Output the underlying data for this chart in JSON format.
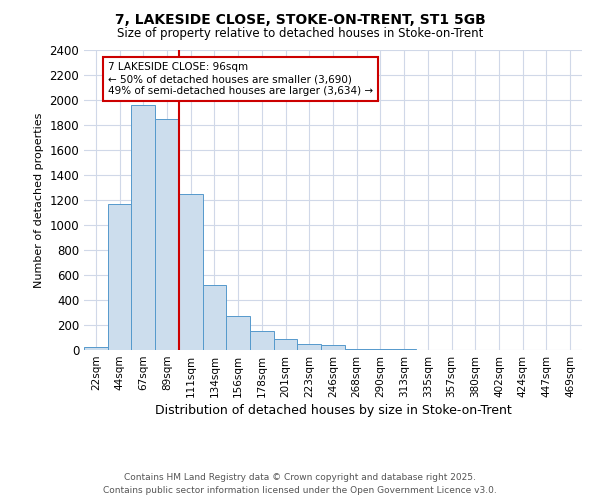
{
  "title1": "7, LAKESIDE CLOSE, STOKE-ON-TRENT, ST1 5GB",
  "title2": "Size of property relative to detached houses in Stoke-on-Trent",
  "xlabel": "Distribution of detached houses by size in Stoke-on-Trent",
  "ylabel": "Number of detached properties",
  "categories": [
    "22sqm",
    "44sqm",
    "67sqm",
    "89sqm",
    "111sqm",
    "134sqm",
    "156sqm",
    "178sqm",
    "201sqm",
    "223sqm",
    "246sqm",
    "268sqm",
    "290sqm",
    "313sqm",
    "335sqm",
    "357sqm",
    "380sqm",
    "402sqm",
    "424sqm",
    "447sqm",
    "469sqm"
  ],
  "values": [
    28,
    1170,
    1960,
    1850,
    1245,
    520,
    275,
    155,
    85,
    48,
    38,
    5,
    10,
    5,
    3,
    2,
    1,
    1,
    0,
    1,
    0
  ],
  "bar_color": "#ccdded",
  "bar_edge_color": "#5599cc",
  "vline_color": "#cc0000",
  "vline_x": 3.5,
  "annotation_title": "7 LAKESIDE CLOSE: 96sqm",
  "annotation_line1": "← 50% of detached houses are smaller (3,690)",
  "annotation_line2": "49% of semi-detached houses are larger (3,634) →",
  "annotation_box_color": "#cc0000",
  "ylim": [
    0,
    2400
  ],
  "yticks": [
    0,
    200,
    400,
    600,
    800,
    1000,
    1200,
    1400,
    1600,
    1800,
    2000,
    2200,
    2400
  ],
  "footer1": "Contains HM Land Registry data © Crown copyright and database right 2025.",
  "footer2": "Contains public sector information licensed under the Open Government Licence v3.0.",
  "bg_color": "#ffffff",
  "plot_bg_color": "#ffffff",
  "grid_color": "#d0d8e8"
}
